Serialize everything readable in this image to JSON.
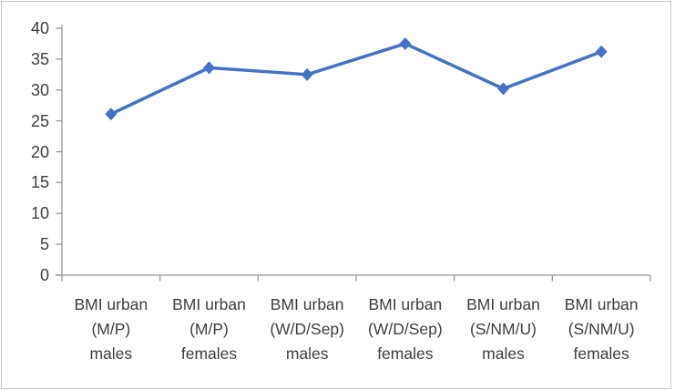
{
  "chart_data": {
    "type": "line",
    "title": "",
    "xlabel": "",
    "ylabel": "",
    "categories": [
      "BMI urban\n(M/P)\nmales",
      "BMI urban\n(M/P)\nfemales",
      "BMI urban\n(W/D/Sep)\nmales",
      "BMI urban\n(W/D/Sep)\nfemales",
      "BMI urban\n(S/NM/U)\nmales",
      "BMI urban\n(S/NM/U)\nfemales"
    ],
    "values": [
      26.1,
      33.6,
      32.5,
      37.5,
      30.2,
      36.2
    ],
    "ylim": [
      0,
      40
    ],
    "yticks": [
      0,
      5,
      10,
      15,
      20,
      25,
      30,
      35,
      40
    ],
    "grid": false,
    "legend_position": "none",
    "marker": "diamond"
  },
  "colors": {
    "line": "#4472C4",
    "marker": "#4472C4",
    "axis": "#969696",
    "tick_label": "#404040",
    "frame_border": "#c9c9c9",
    "background": "#ffffff"
  }
}
